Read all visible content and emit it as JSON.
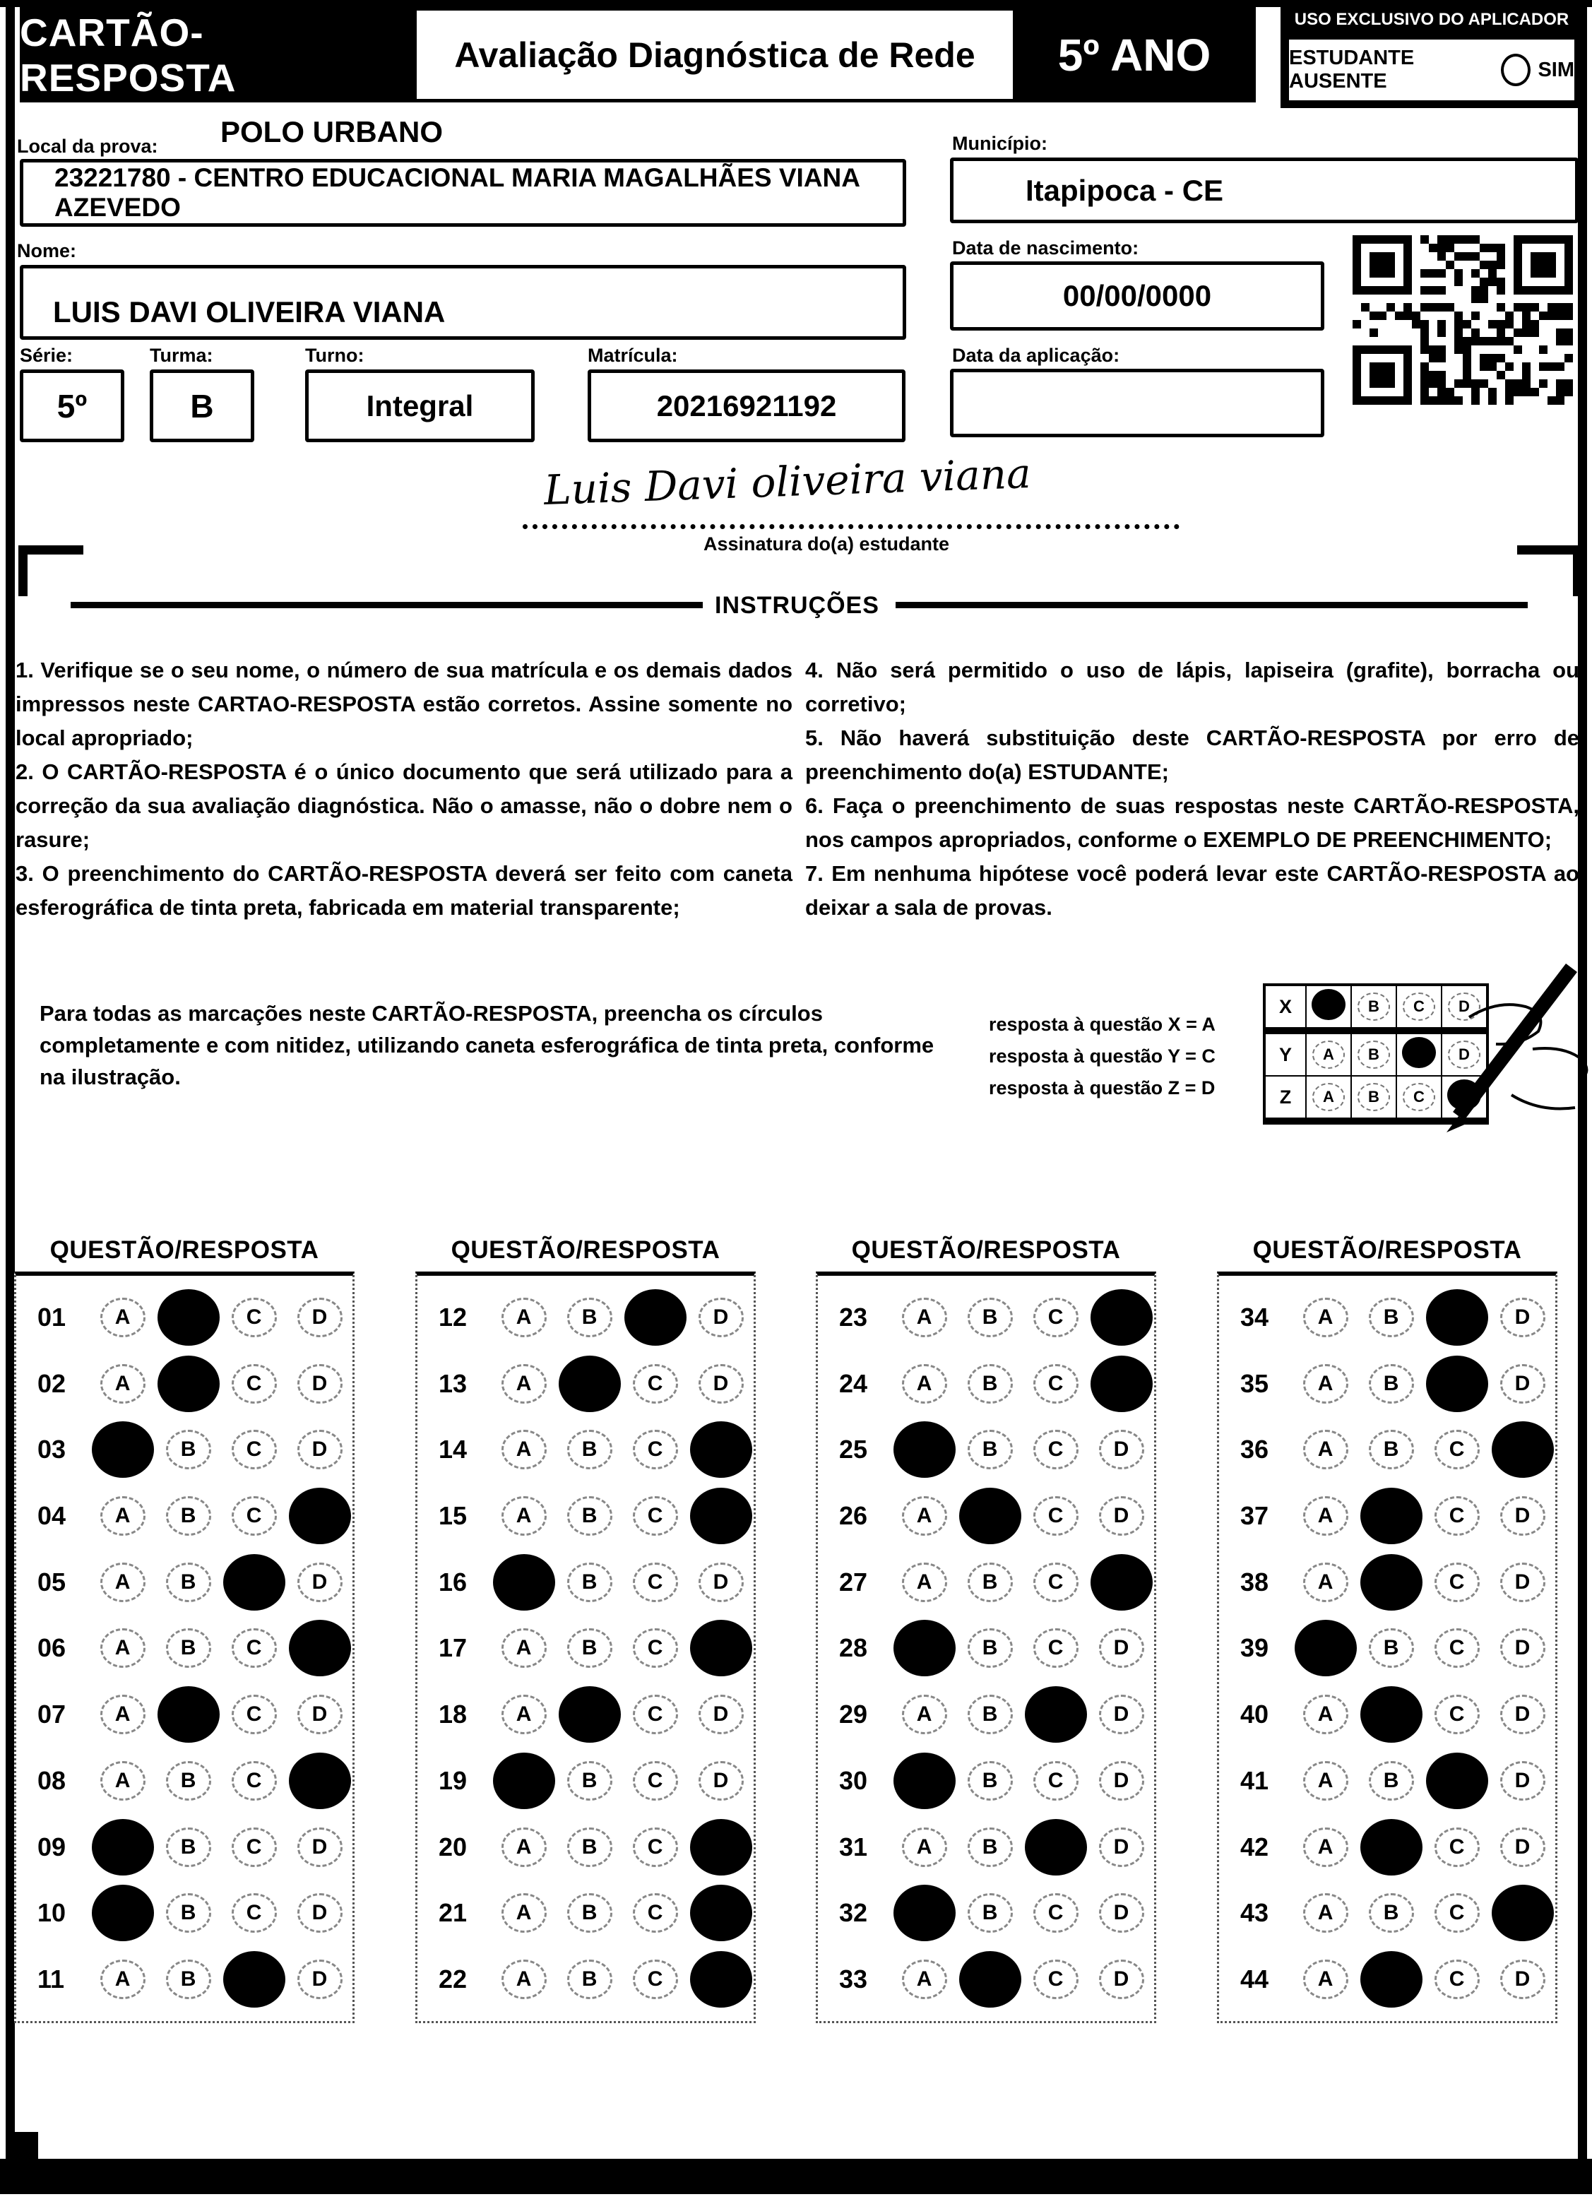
{
  "header": {
    "card_title": "CARTÃO-RESPOSTA",
    "exam_title": "Avaliação Diagnóstica de Rede",
    "grade": "5º ANO",
    "applicator_box_title": "USO EXCLUSIVO DO APLICADOR",
    "absent_label": "ESTUDANTE AUSENTE",
    "absent_option": "SIM"
  },
  "form": {
    "local_label": "Local da prova:",
    "local_value": "POLO URBANO",
    "school_value": "23221780 - CENTRO EDUCACIONAL MARIA MAGALHÃES VIANA AZEVEDO",
    "municipio_label": "Município:",
    "municipio_value": "Itapipoca - CE",
    "nome_label": "Nome:",
    "nome_value": "LUIS DAVI OLIVEIRA VIANA",
    "nascimento_label": "Data de nascimento:",
    "nascimento_value": "00/00/0000",
    "serie_label": "Série:",
    "serie_value": "5º",
    "turma_label": "Turma:",
    "turma_value": "B",
    "turno_label": "Turno:",
    "turno_value": "Integral",
    "matricula_label": "Matrícula:",
    "matricula_value": "20216921192",
    "aplicacao_label": "Data da aplicação:",
    "aplicacao_value": "",
    "signature_value": "Luis Davi oliveira viana",
    "signature_label": "Assinatura do(a) estudante"
  },
  "instructions": {
    "title": "INSTRUÇÕES",
    "left_items": [
      "1. Verifique se o seu nome, o número de sua matrícula e os demais dados impressos neste CARTAO-RESPOSTA estão corretos. Assine somente no local apropriado;",
      "2. O CARTÃO-RESPOSTA é o único documento que será utilizado para a correção da sua avaliação diagnóstica. Não o amasse, não o dobre nem o rasure;",
      "3. O preenchimento do CARTÃO-RESPOSTA deverá ser feito com caneta esferográfica de tinta preta, fabricada em material transparente;"
    ],
    "right_items": [
      "4. Não será permitido o uso de lápis, lapiseira (grafite), borracha ou corretivo;",
      "5. Não haverá substituição deste CARTÃO-RESPOSTA por erro de preenchimento do(a) ESTUDANTE;",
      "6. Faça o preenchimento de suas respostas neste CARTÃO-RESPOSTA, nos campos apropriados, conforme o EXEMPLO DE PREENCHIMENTO;",
      "7. Em nenhuma hipótese você poderá levar este CARTÃO-RESPOSTA ao deixar a sala de provas."
    ],
    "fill_note": "Para todas as marcações neste CARTÃO-RESPOSTA, preencha os círculos completamente e com nitidez, utilizando caneta esferográfica de tinta preta, conforme na ilustração.",
    "example_caption_lines": [
      "resposta à questão X = A",
      "resposta à questão Y = C",
      "resposta à questão Z = D"
    ],
    "example_rows": [
      {
        "label": "X",
        "answer": "A"
      },
      {
        "label": "Y",
        "answer": "C"
      },
      {
        "label": "Z",
        "answer": "D"
      }
    ]
  },
  "answers": {
    "section_title": "QUESTÃO/RESPOSTA",
    "options": [
      "A",
      "B",
      "C",
      "D"
    ],
    "columns": [
      [
        {
          "q": "01",
          "a": "B"
        },
        {
          "q": "02",
          "a": "B"
        },
        {
          "q": "03",
          "a": "A"
        },
        {
          "q": "04",
          "a": "D"
        },
        {
          "q": "05",
          "a": "C"
        },
        {
          "q": "06",
          "a": "D"
        },
        {
          "q": "07",
          "a": "B"
        },
        {
          "q": "08",
          "a": "D"
        },
        {
          "q": "09",
          "a": "A"
        },
        {
          "q": "10",
          "a": "A"
        },
        {
          "q": "11",
          "a": "C"
        }
      ],
      [
        {
          "q": "12",
          "a": "C"
        },
        {
          "q": "13",
          "a": "B"
        },
        {
          "q": "14",
          "a": "D"
        },
        {
          "q": "15",
          "a": "D"
        },
        {
          "q": "16",
          "a": "A"
        },
        {
          "q": "17",
          "a": "D"
        },
        {
          "q": "18",
          "a": "B"
        },
        {
          "q": "19",
          "a": "A"
        },
        {
          "q": "20",
          "a": "D"
        },
        {
          "q": "21",
          "a": "D"
        },
        {
          "q": "22",
          "a": "D"
        }
      ],
      [
        {
          "q": "23",
          "a": "D"
        },
        {
          "q": "24",
          "a": "D"
        },
        {
          "q": "25",
          "a": "A"
        },
        {
          "q": "26",
          "a": "B"
        },
        {
          "q": "27",
          "a": "D"
        },
        {
          "q": "28",
          "a": "A"
        },
        {
          "q": "29",
          "a": "C"
        },
        {
          "q": "30",
          "a": "A"
        },
        {
          "q": "31",
          "a": "C"
        },
        {
          "q": "32",
          "a": "A"
        },
        {
          "q": "33",
          "a": "B"
        }
      ],
      [
        {
          "q": "34",
          "a": "C"
        },
        {
          "q": "35",
          "a": "C"
        },
        {
          "q": "36",
          "a": "D"
        },
        {
          "q": "37",
          "a": "B"
        },
        {
          "q": "38",
          "a": "B"
        },
        {
          "q": "39",
          "a": "A"
        },
        {
          "q": "40",
          "a": "B"
        },
        {
          "q": "41",
          "a": "C"
        },
        {
          "q": "42",
          "a": "B"
        },
        {
          "q": "43",
          "a": "D"
        },
        {
          "q": "44",
          "a": "B"
        }
      ]
    ]
  },
  "colors": {
    "ink": "#000000",
    "paper": "#ffffff"
  }
}
